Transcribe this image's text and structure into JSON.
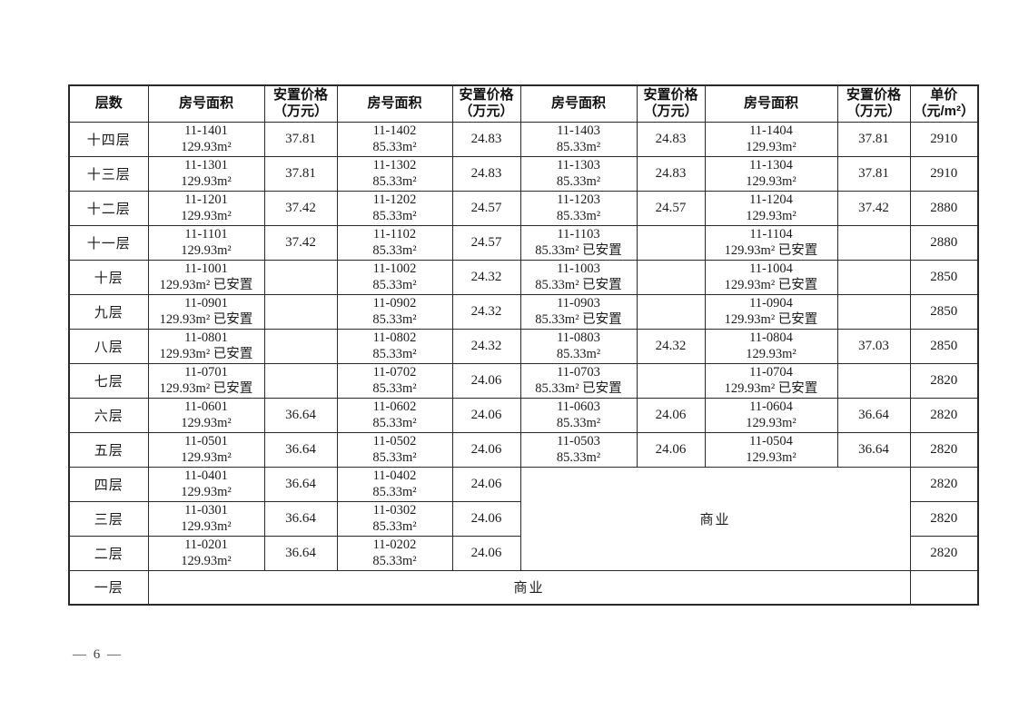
{
  "page": {
    "number": "— 6 —"
  },
  "table": {
    "columns": [
      {
        "label": "层数",
        "sub": ""
      },
      {
        "label": "房号面积",
        "sub": ""
      },
      {
        "label": "安置价格",
        "sub": "（万元）"
      },
      {
        "label": "房号面积",
        "sub": ""
      },
      {
        "label": "安置价格",
        "sub": "（万元）"
      },
      {
        "label": "房号面积",
        "sub": ""
      },
      {
        "label": "安置价格",
        "sub": "（万元）"
      },
      {
        "label": "房号面积",
        "sub": ""
      },
      {
        "label": "安置价格",
        "sub": "（万元）"
      },
      {
        "label": "单价",
        "sub": "（元/m²）"
      }
    ],
    "commercial_label": "商业",
    "rows": [
      {
        "floor": "十四层",
        "units": [
          {
            "room": "11-1401",
            "area": "129.93m²",
            "price": "37.81"
          },
          {
            "room": "11-1402",
            "area": "85.33m²",
            "price": "24.83"
          },
          {
            "room": "11-1403",
            "area": "85.33m²",
            "price": "24.83"
          },
          {
            "room": "11-1404",
            "area": "129.93m²",
            "price": "37.81"
          }
        ],
        "unit_price": "2910"
      },
      {
        "floor": "十三层",
        "units": [
          {
            "room": "11-1301",
            "area": "129.93m²",
            "price": "37.81"
          },
          {
            "room": "11-1302",
            "area": "85.33m²",
            "price": "24.83"
          },
          {
            "room": "11-1303",
            "area": "85.33m²",
            "price": "24.83"
          },
          {
            "room": "11-1304",
            "area": "129.93m²",
            "price": "37.81"
          }
        ],
        "unit_price": "2910"
      },
      {
        "floor": "十二层",
        "units": [
          {
            "room": "11-1201",
            "area": "129.93m²",
            "price": "37.42"
          },
          {
            "room": "11-1202",
            "area": "85.33m²",
            "price": "24.57"
          },
          {
            "room": "11-1203",
            "area": "85.33m²",
            "price": "24.57"
          },
          {
            "room": "11-1204",
            "area": "129.93m²",
            "price": "37.42"
          }
        ],
        "unit_price": "2880"
      },
      {
        "floor": "十一层",
        "units": [
          {
            "room": "11-1101",
            "area": "129.93m²",
            "price": "37.42"
          },
          {
            "room": "11-1102",
            "area": "85.33m²",
            "price": "24.57"
          },
          {
            "room": "11-1103",
            "area": "85.33m² 已安置",
            "price": ""
          },
          {
            "room": "11-1104",
            "area": "129.93m² 已安置",
            "price": ""
          }
        ],
        "unit_price": "2880"
      },
      {
        "floor": "十层",
        "units": [
          {
            "room": "11-1001",
            "area": "129.93m² 已安置",
            "price": ""
          },
          {
            "room": "11-1002",
            "area": "85.33m²",
            "price": "24.32"
          },
          {
            "room": "11-1003",
            "area": "85.33m² 已安置",
            "price": ""
          },
          {
            "room": "11-1004",
            "area": "129.93m² 已安置",
            "price": ""
          }
        ],
        "unit_price": "2850"
      },
      {
        "floor": "九层",
        "units": [
          {
            "room": "11-0901",
            "area": "129.93m² 已安置",
            "price": ""
          },
          {
            "room": "11-0902",
            "area": "85.33m²",
            "price": "24.32"
          },
          {
            "room": "11-0903",
            "area": "85.33m² 已安置",
            "price": ""
          },
          {
            "room": "11-0904",
            "area": "129.93m² 已安置",
            "price": ""
          }
        ],
        "unit_price": "2850"
      },
      {
        "floor": "八层",
        "units": [
          {
            "room": "11-0801",
            "area": "129.93m² 已安置",
            "price": ""
          },
          {
            "room": "11-0802",
            "area": "85.33m²",
            "price": "24.32"
          },
          {
            "room": "11-0803",
            "area": "85.33m²",
            "price": "24.32"
          },
          {
            "room": "11-0804",
            "area": "129.93m²",
            "price": "37.03"
          }
        ],
        "unit_price": "2850"
      },
      {
        "floor": "七层",
        "units": [
          {
            "room": "11-0701",
            "area": "129.93m² 已安置",
            "price": ""
          },
          {
            "room": "11-0702",
            "area": "85.33m²",
            "price": "24.06"
          },
          {
            "room": "11-0703",
            "area": "85.33m² 已安置",
            "price": ""
          },
          {
            "room": "11-0704",
            "area": "129.93m² 已安置",
            "price": ""
          }
        ],
        "unit_price": "2820"
      },
      {
        "floor": "六层",
        "units": [
          {
            "room": "11-0601",
            "area": "129.93m²",
            "price": "36.64"
          },
          {
            "room": "11-0602",
            "area": "85.33m²",
            "price": "24.06"
          },
          {
            "room": "11-0603",
            "area": "85.33m²",
            "price": "24.06"
          },
          {
            "room": "11-0604",
            "area": "129.93m²",
            "price": "36.64"
          }
        ],
        "unit_price": "2820"
      },
      {
        "floor": "五层",
        "units": [
          {
            "room": "11-0501",
            "area": "129.93m²",
            "price": "36.64"
          },
          {
            "room": "11-0502",
            "area": "85.33m²",
            "price": "24.06"
          },
          {
            "room": "11-0503",
            "area": "85.33m²",
            "price": "24.06"
          },
          {
            "room": "11-0504",
            "area": "129.93m²",
            "price": "36.64"
          }
        ],
        "unit_price": "2820"
      },
      {
        "floor": "四层",
        "commercial": "start",
        "units": [
          {
            "room": "11-0401",
            "area": "129.93m²",
            "price": "36.64"
          },
          {
            "room": "11-0402",
            "area": "85.33m²",
            "price": "24.06"
          }
        ],
        "unit_price": "2820"
      },
      {
        "floor": "三层",
        "commercial": "covered",
        "units": [
          {
            "room": "11-0301",
            "area": "129.93m²",
            "price": "36.64"
          },
          {
            "room": "11-0302",
            "area": "85.33m²",
            "price": "24.06"
          }
        ],
        "unit_price": "2820"
      },
      {
        "floor": "二层",
        "commercial": "covered",
        "units": [
          {
            "room": "11-0201",
            "area": "129.93m²",
            "price": "36.64"
          },
          {
            "room": "11-0202",
            "area": "85.33m²",
            "price": "24.06"
          }
        ],
        "unit_price": "2820"
      },
      {
        "floor": "一层",
        "commercial": "full-row",
        "units": [],
        "unit_price": ""
      }
    ]
  }
}
